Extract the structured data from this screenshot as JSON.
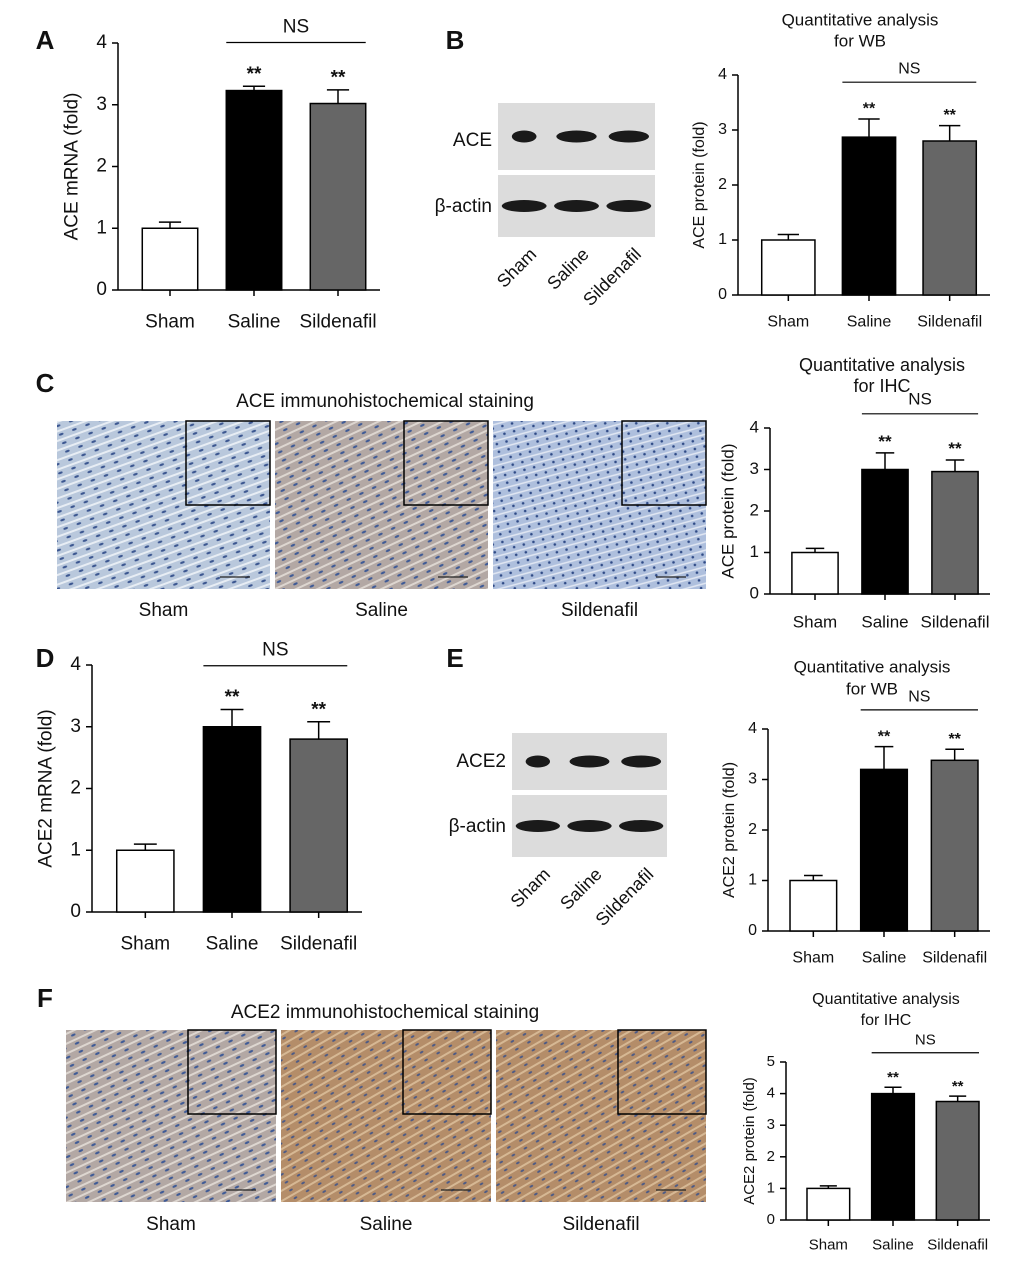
{
  "panel_labels": [
    "A",
    "B",
    "C",
    "D",
    "E",
    "F"
  ],
  "blots": [
    {
      "rows": [
        "ACE",
        "β-actin"
      ],
      "lanes": [
        "Sham",
        "Saline",
        "Sildenafil"
      ]
    },
    {
      "rows": [
        "ACE2",
        "β-actin"
      ],
      "lanes": [
        "Sham",
        "Saline",
        "Sildenafil"
      ]
    }
  ],
  "stainings": [
    {
      "title": "ACE immunohistochemical staining",
      "captions": [
        "Sham",
        "Saline",
        "Sildenafil"
      ]
    },
    {
      "title": "ACE2 immunohistochemical staining",
      "captions": [
        "Sham",
        "Saline",
        "Sildenafil"
      ]
    }
  ],
  "chart_data": [
    {
      "type": "bar",
      "ylabel": "ACE mRNA (fold)",
      "categories": [
        "Sham",
        "Saline",
        "Sildenafil"
      ],
      "values": [
        1.0,
        3.23,
        3.02
      ],
      "errors": [
        0.1,
        0.07,
        0.22
      ],
      "colors": [
        "#ffffff",
        "#000000",
        "#666666"
      ],
      "significance": [
        null,
        "**",
        "**"
      ],
      "bracket_label": "NS",
      "ylim": [
        0,
        4
      ],
      "yticks": [
        0,
        1,
        2,
        3,
        4
      ]
    },
    {
      "type": "bar",
      "title": [
        "Quantitative analysis",
        "for WB"
      ],
      "ylabel": "ACE protein (fold)",
      "categories": [
        "Sham",
        "Saline",
        "Sildenafil"
      ],
      "values": [
        1.0,
        2.87,
        2.8
      ],
      "errors": [
        0.1,
        0.33,
        0.28
      ],
      "colors": [
        "#ffffff",
        "#000000",
        "#666666"
      ],
      "significance": [
        null,
        "**",
        "**"
      ],
      "bracket_label": "NS",
      "ylim": [
        0,
        4
      ],
      "yticks": [
        0,
        1,
        2,
        3,
        4
      ]
    },
    {
      "type": "bar",
      "title": [
        "Quantitative analysis",
        "for IHC"
      ],
      "ylabel": "ACE protein (fold)",
      "categories": [
        "Sham",
        "Saline",
        "Sildenafil"
      ],
      "values": [
        1.0,
        3.0,
        2.95
      ],
      "errors": [
        0.1,
        0.4,
        0.28
      ],
      "colors": [
        "#ffffff",
        "#000000",
        "#666666"
      ],
      "significance": [
        null,
        "**",
        "**"
      ],
      "bracket_label": "NS",
      "ylim": [
        0,
        4
      ],
      "yticks": [
        0,
        1,
        2,
        3,
        4
      ]
    },
    {
      "type": "bar",
      "ylabel": "ACE2 mRNA (fold)",
      "categories": [
        "Sham",
        "Saline",
        "Sildenafil"
      ],
      "values": [
        1.0,
        3.0,
        2.8
      ],
      "errors": [
        0.1,
        0.28,
        0.28
      ],
      "colors": [
        "#ffffff",
        "#000000",
        "#666666"
      ],
      "significance": [
        null,
        "**",
        "**"
      ],
      "bracket_label": "NS",
      "ylim": [
        0,
        4
      ],
      "yticks": [
        0,
        1,
        2,
        3,
        4
      ]
    },
    {
      "type": "bar",
      "title": [
        "Quantitative analysis",
        "for WB"
      ],
      "ylabel": "ACE2 protein (fold)",
      "categories": [
        "Sham",
        "Saline",
        "Sildenafil"
      ],
      "values": [
        1.0,
        3.2,
        3.38
      ],
      "errors": [
        0.1,
        0.45,
        0.22
      ],
      "colors": [
        "#ffffff",
        "#000000",
        "#666666"
      ],
      "significance": [
        null,
        "**",
        "**"
      ],
      "bracket_label": "NS",
      "ylim": [
        0,
        4
      ],
      "yticks": [
        0,
        1,
        2,
        3,
        4
      ]
    },
    {
      "type": "bar",
      "title": [
        "Quantitative analysis",
        "for IHC"
      ],
      "ylabel": "ACE2 protein (fold)",
      "categories": [
        "Sham",
        "Saline",
        "Sildenafil"
      ],
      "values": [
        1.0,
        4.0,
        3.75
      ],
      "errors": [
        0.08,
        0.2,
        0.17
      ],
      "colors": [
        "#ffffff",
        "#000000",
        "#666666"
      ],
      "significance": [
        null,
        "**",
        "**"
      ],
      "bracket_label": "NS",
      "ylim": [
        0,
        5
      ],
      "yticks": [
        0,
        1,
        2,
        3,
        4,
        5
      ]
    }
  ]
}
